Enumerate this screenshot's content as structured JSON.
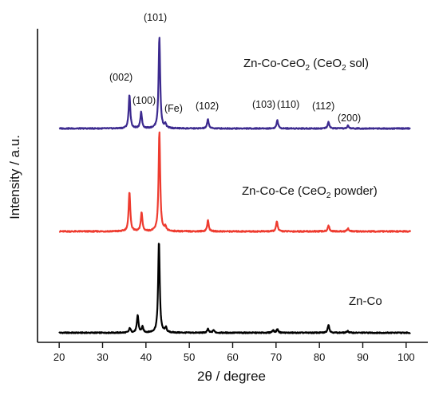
{
  "chart_data": {
    "type": "line",
    "xlabel": "2θ / degree",
    "ylabel": "Intensity / a.u.",
    "xlim": [
      15,
      105
    ],
    "x_ticks": [
      "20",
      "30",
      "40",
      "50",
      "60",
      "70",
      "80",
      "90",
      "100"
    ],
    "grid": false,
    "legend": "none",
    "series": [
      {
        "name": "Zn-Co",
        "label_main": "Zn-Co",
        "color": "#000000",
        "peaks": [
          {
            "x": 36.3,
            "h": 0.05
          },
          {
            "x": 38.1,
            "h": 0.19
          },
          {
            "x": 39.2,
            "h": 0.06
          },
          {
            "x": 43.0,
            "h": 1.0
          },
          {
            "x": 44.6,
            "h": 0.05
          },
          {
            "x": 54.3,
            "h": 0.04
          },
          {
            "x": 55.6,
            "h": 0.03
          },
          {
            "x": 69.3,
            "h": 0.03
          },
          {
            "x": 70.3,
            "h": 0.04
          },
          {
            "x": 82.1,
            "h": 0.09
          },
          {
            "x": 86.5,
            "h": 0.02
          }
        ]
      },
      {
        "name": "Zn-Co-Ce (CeO₂ powder)",
        "label_main": "Zn-Co-Ce (CeO",
        "label_sub": "2",
        "label_tail": " powder)",
        "color": "#ee3b2f",
        "peaks": [
          {
            "x": 36.2,
            "h": 0.4
          },
          {
            "x": 39.0,
            "h": 0.19
          },
          {
            "x": 43.1,
            "h": 1.0
          },
          {
            "x": 44.5,
            "h": 0.04
          },
          {
            "x": 54.3,
            "h": 0.11
          },
          {
            "x": 70.2,
            "h": 0.1
          },
          {
            "x": 82.1,
            "h": 0.06
          },
          {
            "x": 86.6,
            "h": 0.03
          }
        ]
      },
      {
        "name": "Zn-Co-CeO₂ (CeO₂ sol)",
        "label_main": "Zn-Co-CeO",
        "label_sub": "2",
        "label_mid": " (CeO",
        "label_sub2": "2",
        "label_tail": " sol)",
        "color": "#3c2a8f",
        "peaks": [
          {
            "x": 36.2,
            "h": 0.37
          },
          {
            "x": 38.9,
            "h": 0.18
          },
          {
            "x": 43.1,
            "h": 1.0
          },
          {
            "x": 44.5,
            "h": 0.04
          },
          {
            "x": 54.3,
            "h": 0.1
          },
          {
            "x": 70.3,
            "h": 0.09
          },
          {
            "x": 82.1,
            "h": 0.07
          },
          {
            "x": 86.6,
            "h": 0.03
          }
        ]
      }
    ],
    "peak_labels": [
      "(002)",
      "(100)",
      "(101)",
      "(Fe)",
      "(102)",
      "(103)",
      "(110)",
      "(112)",
      "(200)"
    ]
  }
}
